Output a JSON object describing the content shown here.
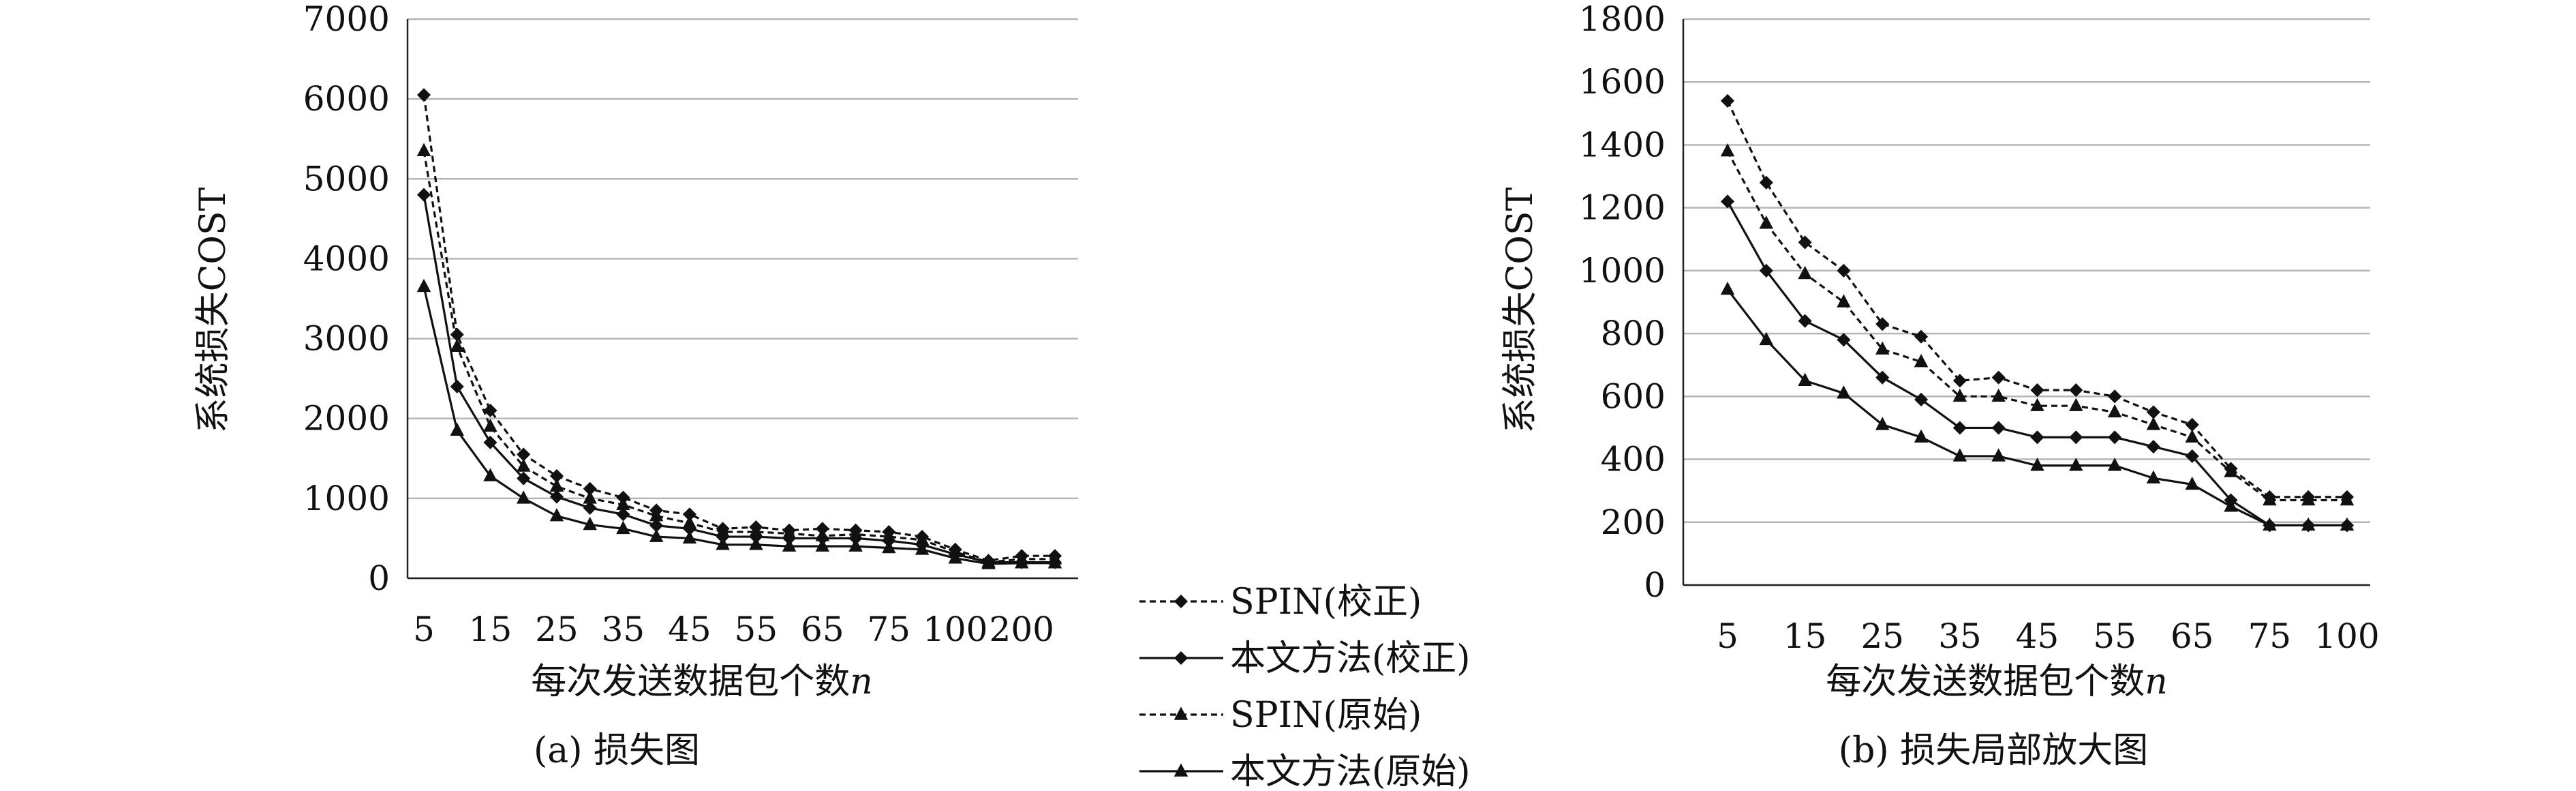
{
  "figure": {
    "legend": {
      "entries": [
        {
          "label": "SPIN(校正)",
          "style": "dashed",
          "marker": "diamond"
        },
        {
          "label": "本文方法(校正)",
          "style": "solid",
          "marker": "diamond"
        },
        {
          "label": "SPIN(原始)",
          "style": "dashed",
          "marker": "triangle"
        },
        {
          "label": "本文方法(原始)",
          "style": "solid",
          "marker": "triangle"
        }
      ]
    }
  },
  "chart_data": [
    {
      "type": "line",
      "title": "(a) 损失图",
      "xlabel": "每次发送数据包个数n",
      "ylabel": "系统损失COST",
      "ylim": [
        0,
        7000
      ],
      "yticks": [
        "0",
        "1000",
        "2000",
        "3000",
        "4000",
        "5000",
        "6000",
        "7000"
      ],
      "x": [
        "5",
        "10",
        "15",
        "20",
        "25",
        "30",
        "35",
        "40",
        "45",
        "50",
        "55",
        "60",
        "65",
        "70",
        "75",
        "80",
        "100",
        "150",
        "200",
        "250"
      ],
      "xtick_labels": [
        "5",
        "15",
        "25",
        "35",
        "45",
        "55",
        "65",
        "75",
        "100",
        "200"
      ],
      "grid": true,
      "series": [
        {
          "name": "SPIN(校正)",
          "values": [
            6050,
            3050,
            2100,
            1550,
            1280,
            1120,
            1010,
            850,
            800,
            620,
            640,
            600,
            620,
            600,
            580,
            520,
            360,
            220,
            280,
            280
          ]
        },
        {
          "name": "SPIN(原始)",
          "values": [
            5350,
            2900,
            1900,
            1400,
            1150,
            1000,
            920,
            780,
            690,
            580,
            580,
            560,
            530,
            550,
            520,
            480,
            330,
            200,
            240,
            240
          ]
        },
        {
          "name": "本文方法(校正)",
          "values": [
            4800,
            2400,
            1700,
            1250,
            1020,
            880,
            800,
            660,
            620,
            520,
            520,
            500,
            500,
            500,
            470,
            420,
            300,
            200,
            200,
            200
          ]
        },
        {
          "name": "本文方法(原始)",
          "values": [
            3650,
            1850,
            1280,
            1000,
            780,
            670,
            620,
            520,
            500,
            420,
            420,
            400,
            400,
            400,
            380,
            360,
            250,
            180,
            190,
            190
          ]
        }
      ]
    },
    {
      "type": "line",
      "title": "(b) 损失局部放大图",
      "xlabel": "每次发送数据包个数n",
      "ylabel": "系统损失COST",
      "ylim": [
        0,
        1800
      ],
      "yticks": [
        "0",
        "200",
        "400",
        "600",
        "800",
        "1000",
        "1200",
        "1400",
        "1600",
        "1800"
      ],
      "x": [
        "5",
        "10",
        "15",
        "20",
        "25",
        "30",
        "35",
        "40",
        "45",
        "50",
        "55",
        "60",
        "65",
        "70",
        "75",
        "80",
        "100"
      ],
      "xtick_labels": [
        "5",
        "15",
        "25",
        "35",
        "45",
        "55",
        "65",
        "75",
        "100"
      ],
      "grid": true,
      "series": [
        {
          "name": "SPIN(校正)",
          "values": [
            1540,
            1280,
            1090,
            1000,
            830,
            790,
            650,
            660,
            620,
            620,
            600,
            550,
            510,
            370,
            280,
            280,
            280
          ]
        },
        {
          "name": "SPIN(原始)",
          "values": [
            1380,
            1150,
            990,
            900,
            750,
            710,
            600,
            600,
            570,
            570,
            550,
            510,
            470,
            360,
            270,
            270,
            270
          ]
        },
        {
          "name": "本文方法(校正)",
          "values": [
            1220,
            1000,
            840,
            780,
            660,
            590,
            500,
            500,
            470,
            470,
            470,
            440,
            410,
            270,
            190,
            190,
            190
          ]
        },
        {
          "name": "本文方法(原始)",
          "values": [
            940,
            780,
            650,
            610,
            510,
            470,
            410,
            410,
            380,
            380,
            380,
            340,
            320,
            250,
            190,
            190,
            190
          ]
        }
      ]
    }
  ]
}
